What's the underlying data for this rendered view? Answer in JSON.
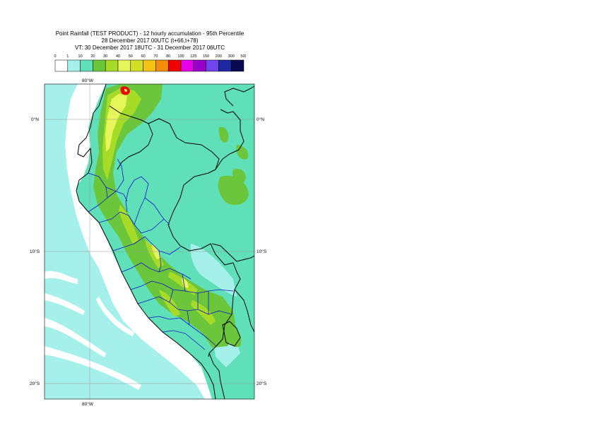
{
  "header": {
    "line1": "Point Rainfall (TEST PRODUCT) - 12 hourly accumulation - 95th Percentile",
    "line2": "28 December 2017 00UTC (t+66,t+78)",
    "line3": "VT: 30 December 2017 18UTC - 31 December 2017 06UTC"
  },
  "legend": {
    "ticks": [
      "0",
      "1",
      "10",
      "20",
      "30",
      "40",
      "50",
      "60",
      "70",
      "80",
      "100",
      "125",
      "150",
      "200",
      "300",
      "500"
    ],
    "colors": [
      "#ffffff",
      "#a6f0ec",
      "#5fe0b8",
      "#6cc63c",
      "#a6dc28",
      "#e6f55a",
      "#d2de28",
      "#f5c314",
      "#f58c0a",
      "#f00000",
      "#e600e6",
      "#9600c8",
      "#6e46eb",
      "#1e28a0",
      "#0a0a50"
    ]
  },
  "map": {
    "lon_label_top": "80°W",
    "lon_label_bottom": "80°W",
    "lat_labels": [
      "0°N",
      "10°S",
      "20°S"
    ],
    "colors": {
      "ocean": "#ffffff",
      "light": "#a6f0ec",
      "land": "#5fe0b8",
      "green": "#6cc63c",
      "lime": "#a6dc28",
      "yellow": "#e6f55a",
      "red": "#f00000",
      "border": "#000000",
      "regions": "#1414c8"
    }
  }
}
